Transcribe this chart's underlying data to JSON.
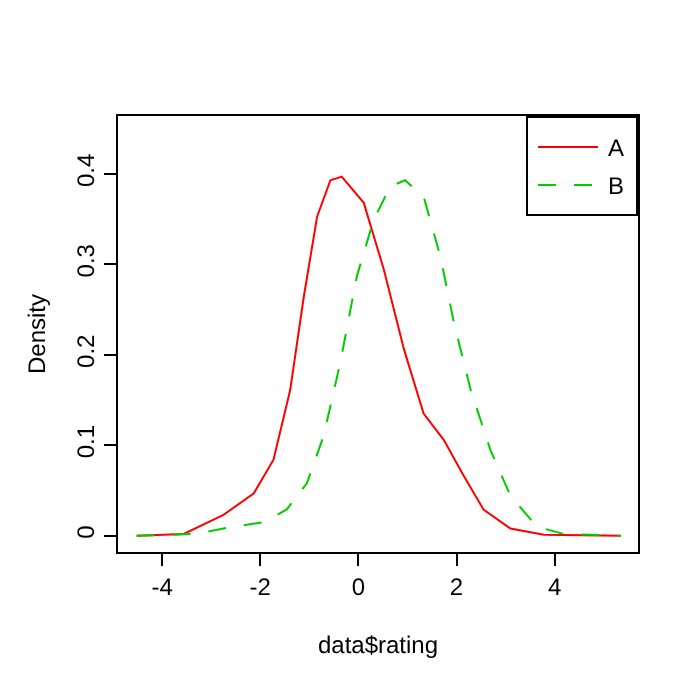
{
  "chart_data": {
    "type": "line",
    "xlabel": "data$rating",
    "ylabel": "Density",
    "xlim": [
      -4.9,
      5.7
    ],
    "ylim": [
      -0.018,
      0.464
    ],
    "xticks": [
      -4,
      -2,
      0,
      2,
      4
    ],
    "yticks": [
      0,
      0.1,
      0.2,
      0.3,
      0.4
    ],
    "grid": false,
    "legend": "top right",
    "marker": "none",
    "series": [
      {
        "name": "A",
        "color": "#ff0000",
        "line_style": "solid",
        "x": [
          -4.52,
          -3.56,
          -2.75,
          -2.13,
          -1.73,
          -1.39,
          -1.11,
          -0.84,
          -0.57,
          -0.34,
          0.11,
          0.52,
          0.93,
          1.33,
          1.74,
          2.15,
          2.55,
          3.1,
          3.78,
          5.35
        ],
        "values": [
          0,
          0.002,
          0.023,
          0.047,
          0.084,
          0.161,
          0.265,
          0.353,
          0.393,
          0.397,
          0.368,
          0.294,
          0.206,
          0.135,
          0.106,
          0.066,
          0.029,
          0.008,
          0.001,
          0
        ]
      },
      {
        "name": "B",
        "color": "#00cd00",
        "line_style": "dashed",
        "x": [
          -4.52,
          -3.29,
          -2.75,
          -1.93,
          -1.46,
          -1.05,
          -0.71,
          -0.37,
          -0.03,
          0.31,
          0.65,
          0.95,
          1.33,
          1.67,
          1.95,
          2.29,
          2.69,
          3.1,
          3.64,
          4.18,
          5.35
        ],
        "values": [
          0,
          0.002,
          0.008,
          0.015,
          0.029,
          0.058,
          0.11,
          0.191,
          0.287,
          0.349,
          0.386,
          0.393,
          0.375,
          0.309,
          0.235,
          0.161,
          0.095,
          0.044,
          0.01,
          0.002,
          0
        ]
      }
    ]
  }
}
